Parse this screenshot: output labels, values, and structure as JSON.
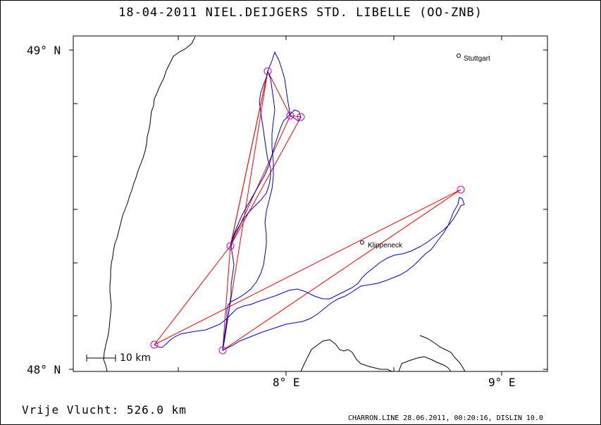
{
  "title": "18-04-2011   NIEL.DEIJGERS   STD. LIBELLE (OO-ZNB)",
  "axes": {
    "lat_labels": [
      "49° N",
      "48° N"
    ],
    "lon_labels": [
      "8° E",
      "9° E"
    ]
  },
  "scale_bar": {
    "label": "10 km"
  },
  "places": [
    {
      "name": "Stuttgart"
    },
    {
      "name": "Klippeneck"
    }
  ],
  "distance_text": "Vrije Vlucht:  526.0 km",
  "footer_text": "CHARRON.LINE 28.06.2011, 00:20:16, DISLIN 10.0",
  "colors": {
    "track": "#0000cc",
    "task_lines": "#ff0000",
    "turnpoint_markers": "#cc00cc",
    "coastline": "#000000"
  }
}
